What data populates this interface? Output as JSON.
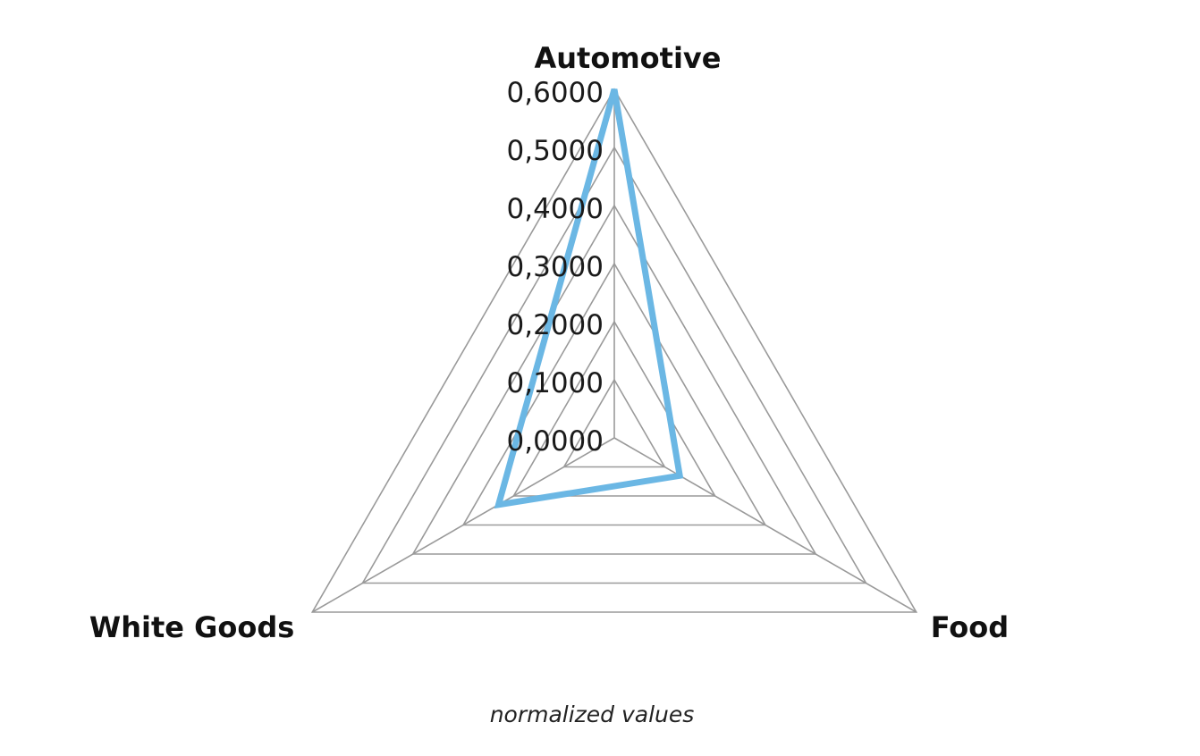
{
  "chart_data": {
    "type": "radar",
    "axes": [
      "Automotive",
      "Food",
      "White Goods"
    ],
    "series": [
      {
        "values": [
          0.6,
          0.13,
          0.23
        ],
        "color": "#6bb7e4"
      }
    ],
    "rlim": [
      0,
      0.6
    ],
    "ticks": [
      0.0,
      0.1,
      0.2,
      0.3,
      0.4,
      0.5,
      0.6
    ],
    "tick_labels": [
      "0,0000",
      "0,1000",
      "0,2000",
      "0,3000",
      "0,4000",
      "0,5000",
      "0,6000"
    ],
    "caption": "normalized values",
    "grid": true,
    "legend": "none"
  }
}
